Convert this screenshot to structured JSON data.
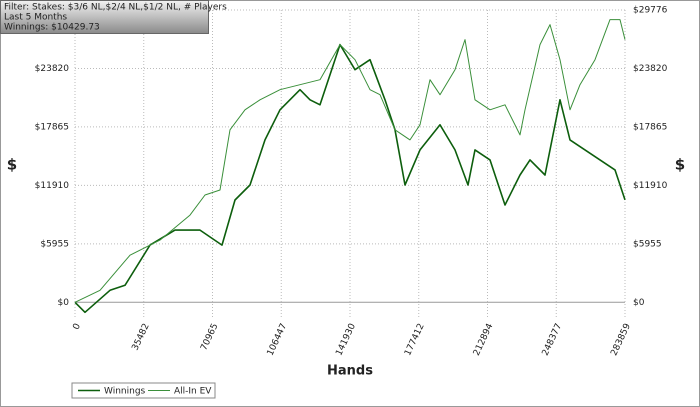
{
  "chart_data": {
    "type": "line",
    "annotations": [
      "Filter: Stakes: $3/6 NL,$2/4 NL,$1/2 NL, # Players",
      "Last  5 Months",
      "Winnings: $10429.73"
    ],
    "xlabel": "Hands",
    "ylabel": "$",
    "y2label": "$",
    "xlim": [
      0,
      283859
    ],
    "ylim": [
      -1600,
      29776
    ],
    "xticks": [
      0,
      35482,
      70965,
      106447,
      141930,
      177412,
      212894,
      248377,
      283859
    ],
    "yticks": [
      {
        "value": 0,
        "label": "$0"
      },
      {
        "value": 5955,
        "label": "$5955"
      },
      {
        "value": 11910,
        "label": "$11910"
      },
      {
        "value": 17865,
        "label": "$17865"
      },
      {
        "value": 23820,
        "label": "$23820"
      },
      {
        "value": 29776,
        "label": "$29776"
      }
    ],
    "grid": true,
    "legend": "bottom-left",
    "series": [
      {
        "name": "Winnings",
        "color": "#0d5e0d",
        "x": [
          0,
          5161,
          18064,
          25805,
          38708,
          51610,
          64513,
          75867,
          82576,
          90318,
          98059,
          105801,
          116123,
          121284,
          126445,
          131606,
          136767,
          144508,
          152250,
          159991,
          165152,
          170313,
          178054,
          188376,
          196118,
          202827,
          206440,
          214181,
          219342,
          221923,
          229664,
          234825,
          242567,
          250308,
          255469,
          263211,
          270953,
          278694,
          283859
        ],
        "values": [
          0,
          -1021,
          1226,
          1736,
          5822,
          7354,
          7354,
          5822,
          10418,
          11950,
          16546,
          19611,
          21654,
          20632,
          20122,
          23185,
          26249,
          23696,
          24717,
          20632,
          17567,
          11950,
          15524,
          18078,
          15524,
          11950,
          15524,
          14503,
          11439,
          9907,
          12971,
          14503,
          12971,
          20632,
          16546,
          15524,
          14503,
          13482,
          10430
        ]
      },
      {
        "name": "All-In EV",
        "color": "#3a8f3a",
        "x": [
          0,
          12903,
          28386,
          43869,
          59352,
          67093,
          74835,
          79996,
          87737,
          95479,
          105801,
          116123,
          126445,
          136767,
          144508,
          152250,
          157411,
          165152,
          172894,
          178054,
          183215,
          188376,
          196118,
          201279,
          206440,
          214181,
          221923,
          229664,
          232245,
          239986,
          245147,
          250308,
          255469,
          260630,
          268371,
          276113,
          281274,
          283859
        ],
        "values": [
          0,
          1226,
          4801,
          6333,
          8886,
          10929,
          11439,
          17567,
          19611,
          20632,
          21654,
          22164,
          22675,
          26249,
          24717,
          21654,
          21143,
          17567,
          16546,
          18078,
          22675,
          21143,
          23696,
          26760,
          20632,
          19611,
          20122,
          17057,
          19611,
          26249,
          28292,
          24717,
          19611,
          22164,
          24717,
          28803,
          28803,
          26760
        ]
      }
    ]
  }
}
